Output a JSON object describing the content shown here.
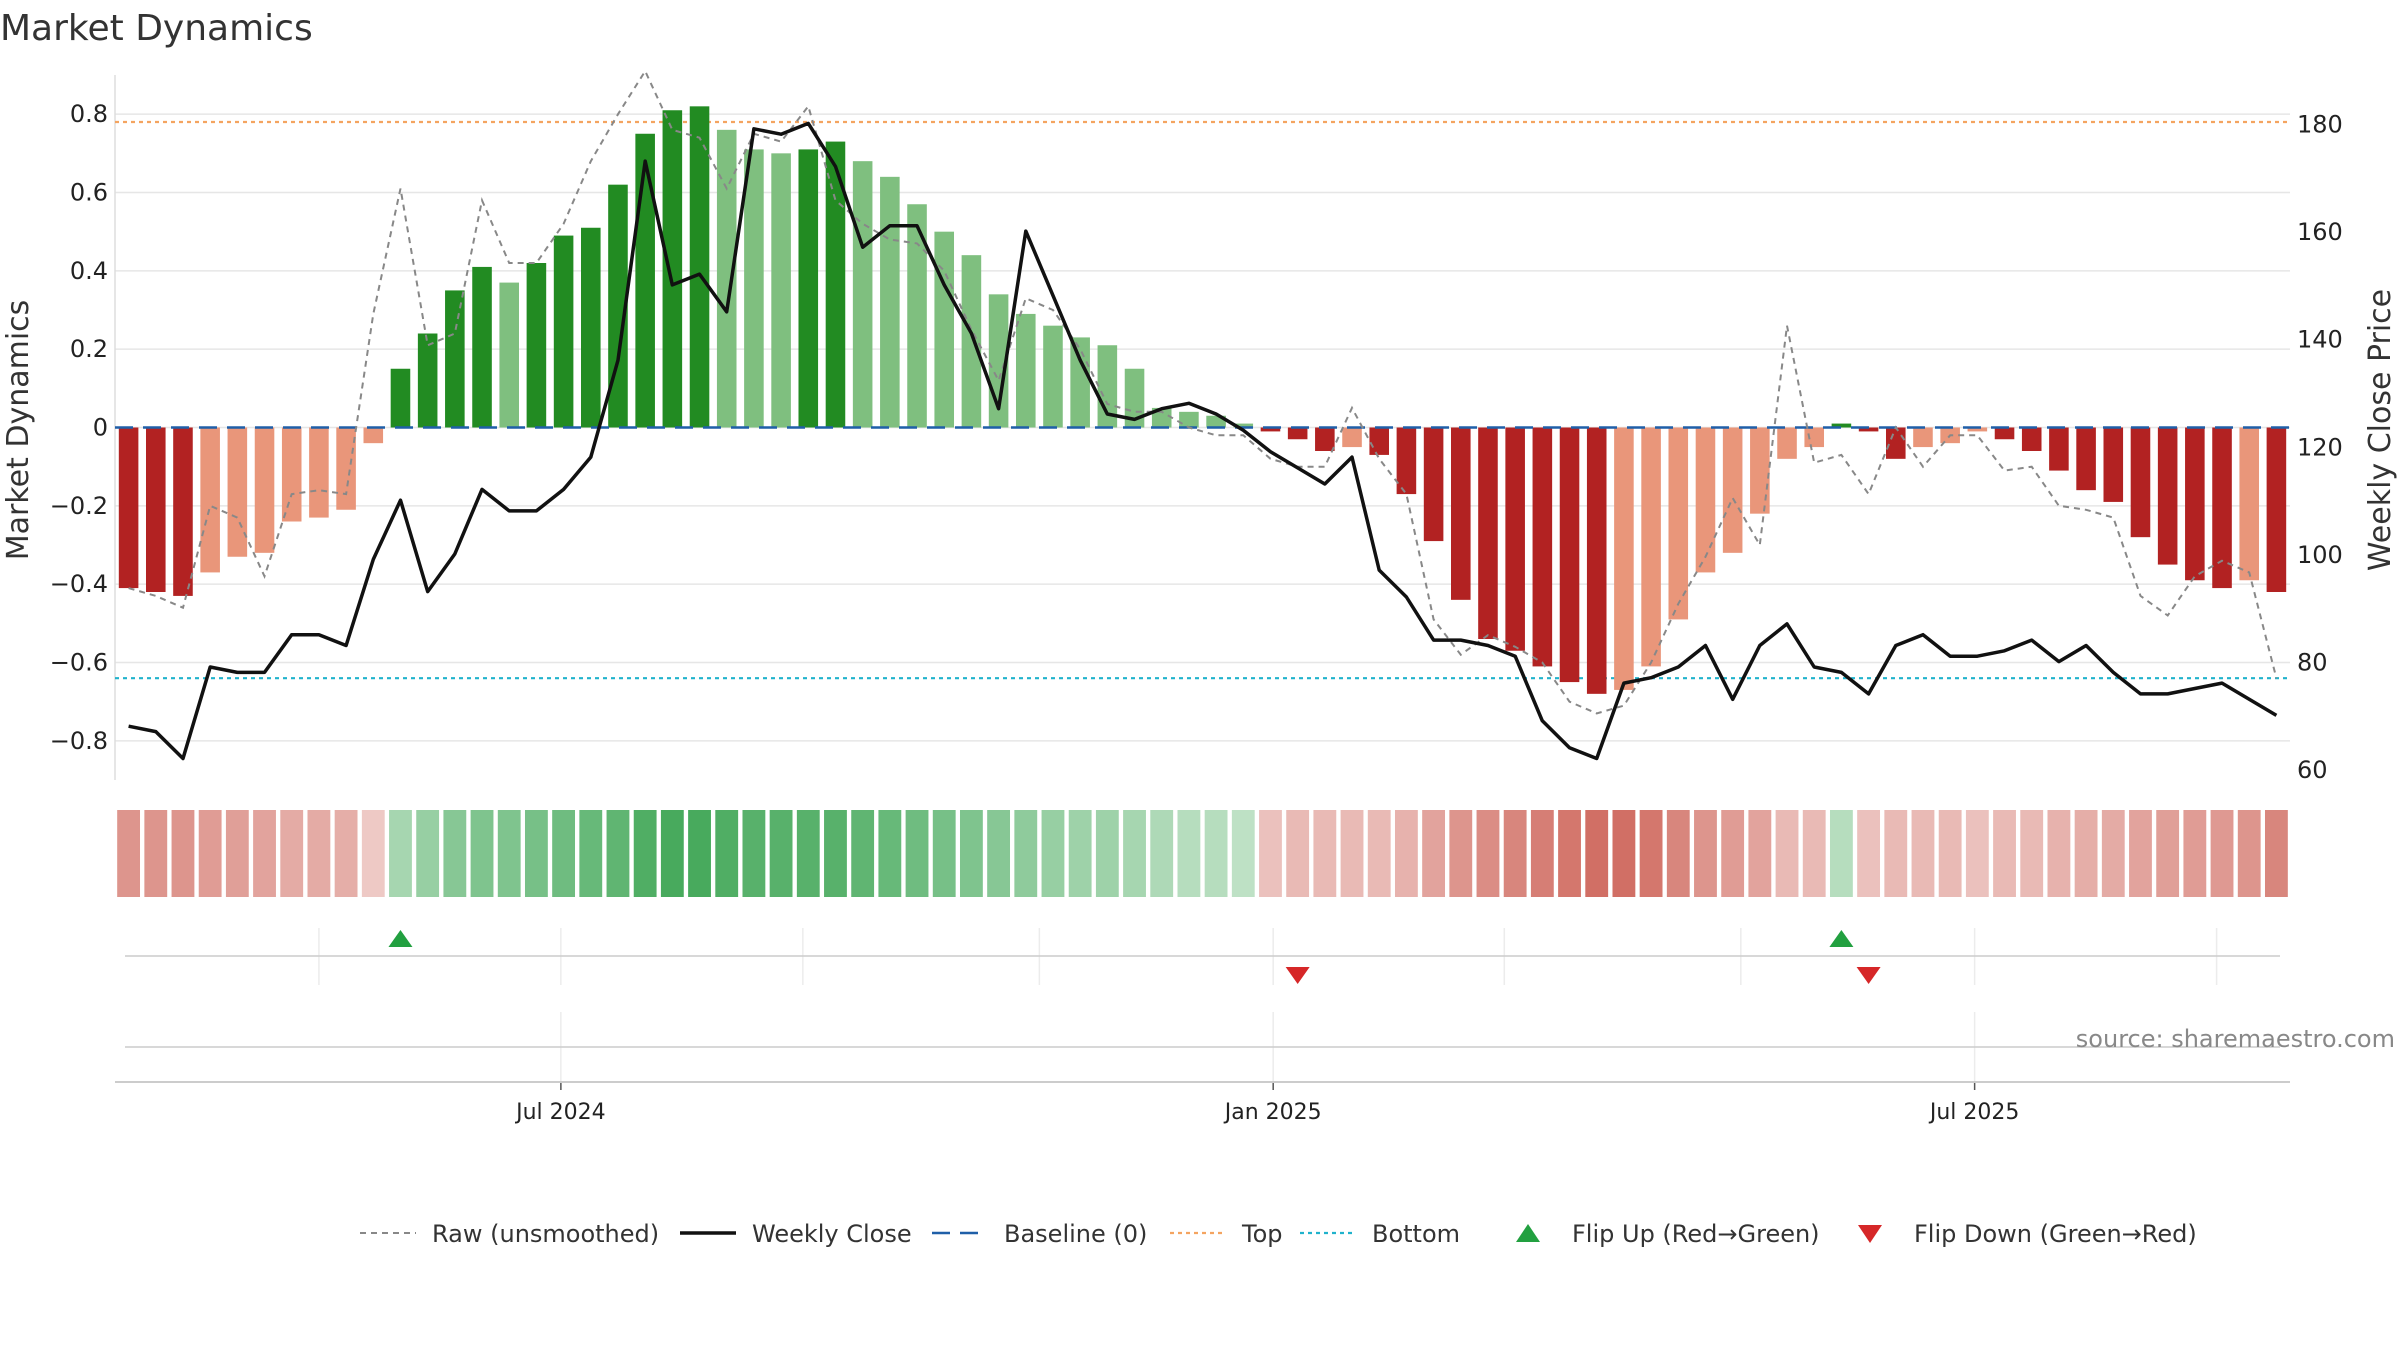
{
  "chart_data": {
    "type": "bar",
    "title": "Market Dynamics",
    "ylabel_left": "Market Dynamics",
    "ylabel_right": "Weekly Close Price",
    "ylim_left": [
      -0.9,
      0.9
    ],
    "ylim_right": [
      58,
      189
    ],
    "yticks_left": [
      -0.8,
      -0.6,
      -0.4,
      -0.2,
      0,
      0.2,
      0.4,
      0.6,
      0.8
    ],
    "ytick_labels_left": [
      "−0.8",
      "−0.6",
      "−0.4",
      "−0.2",
      "0",
      "0.2",
      "0.4",
      "0.6",
      "0.8"
    ],
    "yticks_right": [
      60,
      80,
      100,
      120,
      140,
      160,
      180
    ],
    "ytick_labels_right": [
      "60",
      "80",
      "100",
      "120",
      "140",
      "160",
      "180"
    ],
    "x_tick_labels": [
      "Jul 2024",
      "Jan 2025",
      "Jul 2025"
    ],
    "x_tick_index": [
      16.4,
      42.6,
      68.4
    ],
    "top_level": 0.78,
    "bottom_level": -0.64,
    "baseline": 0,
    "source_text": "source: sharemaestro.com",
    "colors": {
      "strong_up": "#228b22",
      "weak_up": "#7fbf7f",
      "strong_down": "#b22222",
      "weak_down": "#e9967a",
      "raw": "#888888",
      "close": "#111111",
      "baseline": "#1f5fa8",
      "top": "#f4a460",
      "bottom": "#20b2cc",
      "flip_up": "#22a040",
      "flip_down": "#d62728"
    },
    "series": [
      {
        "name": "Market Dynamics",
        "values": [
          -0.41,
          -0.42,
          -0.43,
          -0.37,
          -0.33,
          -0.32,
          -0.24,
          -0.23,
          -0.21,
          -0.04,
          0.15,
          0.24,
          0.35,
          0.41,
          0.37,
          0.42,
          0.49,
          0.51,
          0.62,
          0.75,
          0.81,
          0.82,
          0.76,
          0.71,
          0.7,
          0.71,
          0.73,
          0.68,
          0.64,
          0.57,
          0.5,
          0.44,
          0.34,
          0.29,
          0.26,
          0.23,
          0.21,
          0.15,
          0.05,
          0.04,
          0.03,
          0.01,
          -0.01,
          -0.03,
          -0.06,
          -0.05,
          -0.07,
          -0.17,
          -0.29,
          -0.44,
          -0.54,
          -0.57,
          -0.61,
          -0.65,
          -0.68,
          -0.67,
          -0.61,
          -0.49,
          -0.37,
          -0.32,
          -0.22,
          -0.08,
          -0.05,
          0.01,
          -0.01,
          -0.08,
          -0.05,
          -0.04,
          -0.01,
          -0.03,
          -0.06,
          -0.11,
          -0.16,
          -0.19,
          -0.28,
          -0.35,
          -0.39,
          -0.41,
          -0.39,
          -0.42
        ]
      },
      {
        "name": "Raw (unsmoothed)",
        "values": [
          -0.41,
          -0.43,
          -0.46,
          -0.2,
          -0.23,
          -0.38,
          -0.17,
          -0.16,
          -0.17,
          0.29,
          0.61,
          0.21,
          0.24,
          0.58,
          0.42,
          0.42,
          0.52,
          0.68,
          0.8,
          0.91,
          0.76,
          0.74,
          0.61,
          0.75,
          0.73,
          0.82,
          0.58,
          0.52,
          0.48,
          0.47,
          0.4,
          0.25,
          0.12,
          0.33,
          0.3,
          0.2,
          0.06,
          0.04,
          0.04,
          0.0,
          -0.02,
          -0.02,
          -0.08,
          -0.1,
          -0.1,
          0.05,
          -0.08,
          -0.17,
          -0.49,
          -0.58,
          -0.53,
          -0.56,
          -0.6,
          -0.7,
          -0.73,
          -0.71,
          -0.6,
          -0.45,
          -0.33,
          -0.18,
          -0.3,
          0.26,
          -0.09,
          -0.07,
          -0.17,
          0.0,
          -0.1,
          -0.02,
          -0.02,
          -0.11,
          -0.1,
          -0.2,
          -0.21,
          -0.23,
          -0.43,
          -0.48,
          -0.38,
          -0.34,
          -0.37,
          -0.64
        ]
      },
      {
        "name": "Weekly Close",
        "values": [
          68,
          67,
          62,
          79,
          78,
          78,
          85,
          85,
          83,
          99,
          110,
          93,
          100,
          112,
          108,
          108,
          112,
          118,
          136,
          173,
          150,
          152,
          145,
          179,
          178,
          180,
          172,
          157,
          161,
          161,
          150,
          141,
          127,
          160,
          148,
          136,
          126,
          125,
          127,
          128,
          126,
          123,
          119,
          116,
          113,
          118,
          97,
          92,
          84,
          84,
          83,
          81,
          69,
          64,
          62,
          76,
          77,
          79,
          83,
          73,
          83,
          87,
          79,
          78,
          74,
          83,
          85,
          81,
          81,
          82,
          84,
          80,
          83,
          78,
          74,
          74,
          75,
          76,
          73,
          70
        ]
      }
    ],
    "flip_up_index": [
      10,
      63
    ],
    "flip_down_index": [
      43,
      64
    ],
    "strip_intensity": [
      0.45,
      0.45,
      0.45,
      0.4,
      0.38,
      0.35,
      0.3,
      0.3,
      0.28,
      0.1,
      0.3,
      0.4,
      0.5,
      0.55,
      0.55,
      0.6,
      0.65,
      0.7,
      0.75,
      0.85,
      0.9,
      0.9,
      0.85,
      0.8,
      0.8,
      0.8,
      0.8,
      0.75,
      0.7,
      0.65,
      0.6,
      0.55,
      0.5,
      0.45,
      0.4,
      0.35,
      0.35,
      0.3,
      0.25,
      0.2,
      0.2,
      0.15,
      0.15,
      0.2,
      0.2,
      0.2,
      0.2,
      0.25,
      0.35,
      0.45,
      0.5,
      0.55,
      0.6,
      0.65,
      0.7,
      0.7,
      0.65,
      0.55,
      0.45,
      0.4,
      0.35,
      0.2,
      0.2,
      0.2,
      0.15,
      0.2,
      0.2,
      0.2,
      0.15,
      0.2,
      0.2,
      0.25,
      0.28,
      0.3,
      0.35,
      0.38,
      0.4,
      0.42,
      0.45,
      0.55
    ]
  },
  "legend": {
    "items": [
      {
        "label": "Raw (unsmoothed)",
        "kind": "dashed-gray"
      },
      {
        "label": "Weekly Close",
        "kind": "solid-black"
      },
      {
        "label": "Baseline (0)",
        "kind": "dashed-blue"
      },
      {
        "label": "Top",
        "kind": "dotted-orange"
      },
      {
        "label": "Bottom",
        "kind": "dotted-cyan"
      },
      {
        "label": "Flip Up (Red→Green)",
        "kind": "triangle-up"
      },
      {
        "label": "Flip Down (Green→Red)",
        "kind": "triangle-down"
      }
    ]
  }
}
